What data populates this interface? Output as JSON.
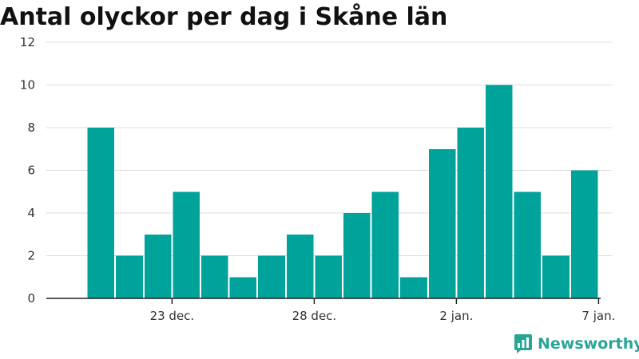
{
  "brand": {
    "name": "Newsworthy",
    "logo_icon": "newsworthy-logo-icon",
    "color": "#2aa595"
  },
  "chart_data": {
    "type": "bar",
    "title": "Antal olyckor per dag i Skåne län",
    "xlabel": "",
    "ylabel": "",
    "ylim": [
      0,
      12
    ],
    "yticks": [
      0,
      2,
      4,
      6,
      8,
      10,
      12
    ],
    "bar_color": "#00a39a",
    "grid": true,
    "legend": "none",
    "x_axis_type": "date",
    "xlim": [
      "2019-12-19",
      "2020-01-08"
    ],
    "x": [
      "2019-12-20",
      "2019-12-21",
      "2019-12-22",
      "2019-12-23",
      "2019-12-24",
      "2019-12-25",
      "2019-12-26",
      "2019-12-27",
      "2019-12-28",
      "2019-12-29",
      "2019-12-30",
      "2019-12-31",
      "2020-01-01",
      "2020-01-02",
      "2020-01-03",
      "2020-01-04",
      "2020-01-05",
      "2020-01-06"
    ],
    "values": [
      8,
      2,
      3,
      5,
      2,
      1,
      2,
      3,
      2,
      4,
      5,
      1,
      7,
      8,
      10,
      5,
      2,
      6
    ],
    "xticks": [
      {
        "date": "2019-12-23",
        "label": "23 dec."
      },
      {
        "date": "2019-12-28",
        "label": "28 dec."
      },
      {
        "date": "2020-01-02",
        "label": "2 jan."
      },
      {
        "date": "2020-01-07",
        "label": "7 jan."
      }
    ]
  }
}
